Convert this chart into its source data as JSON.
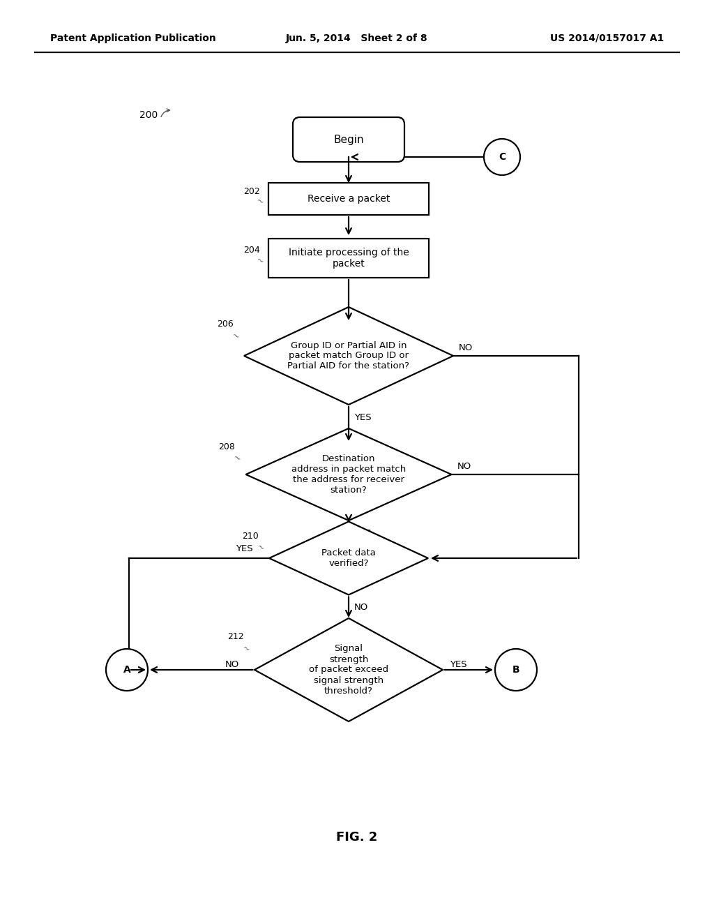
{
  "header_left": "Patent Application Publication",
  "header_mid": "Jun. 5, 2014   Sheet 2 of 8",
  "header_right": "US 2014/0157017 A1",
  "fig_label": "FIG. 2",
  "bg_color": "#ffffff",
  "line_color": "#000000",
  "text_color": "#000000",
  "lw": 1.6
}
